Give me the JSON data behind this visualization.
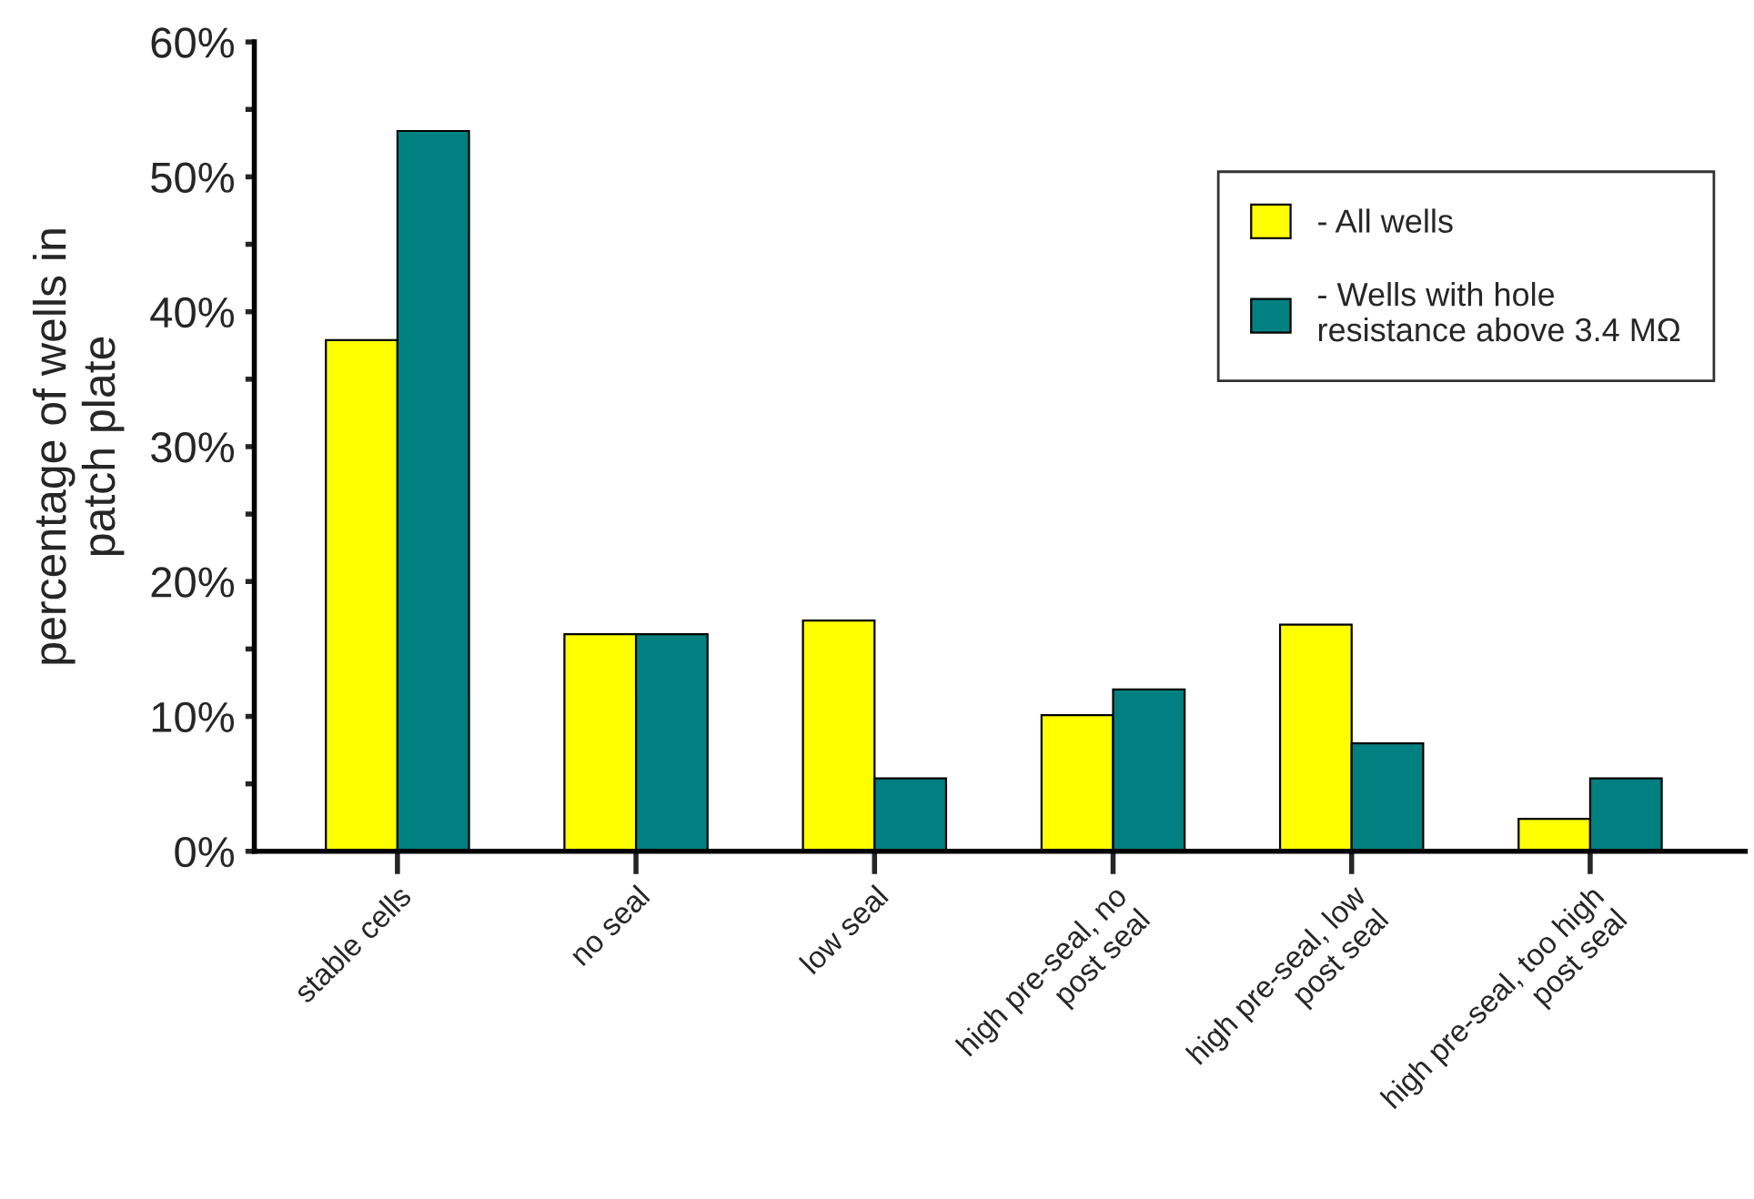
{
  "chart_data": {
    "type": "bar",
    "ylabel": "percentage of wells in\npatch plate",
    "categories": [
      "stable cells",
      "no seal",
      "low seal",
      "high pre-seal, no\npost seal",
      "high pre-seal, low\npost seal",
      "high pre-seal, too high\npost seal"
    ],
    "series": [
      {
        "name": "- All wells",
        "color": "#ffff00",
        "values": [
          37.9,
          16.1,
          17.1,
          10.1,
          16.8,
          2.4
        ]
      },
      {
        "name": "- Wells with hole\nresistance above 3.4 MΩ",
        "color": "#008080",
        "values": [
          53.4,
          16.1,
          5.4,
          12.0,
          8.0,
          5.4
        ]
      }
    ],
    "ylim": [
      0,
      60
    ],
    "yticks": [
      {
        "value": 0,
        "label": "0%"
      },
      {
        "value": 5,
        "label": null
      },
      {
        "value": 10,
        "label": "10%"
      },
      {
        "value": 15,
        "label": null
      },
      {
        "value": 20,
        "label": "20%"
      },
      {
        "value": 25,
        "label": null
      },
      {
        "value": 30,
        "label": "30%"
      },
      {
        "value": 35,
        "label": null
      },
      {
        "value": 40,
        "label": "40%"
      },
      {
        "value": 45,
        "label": null
      },
      {
        "value": 50,
        "label": "50%"
      },
      {
        "value": 55,
        "label": null
      },
      {
        "value": 60,
        "label": "60%"
      }
    ],
    "grid": false,
    "legend": "top right"
  }
}
